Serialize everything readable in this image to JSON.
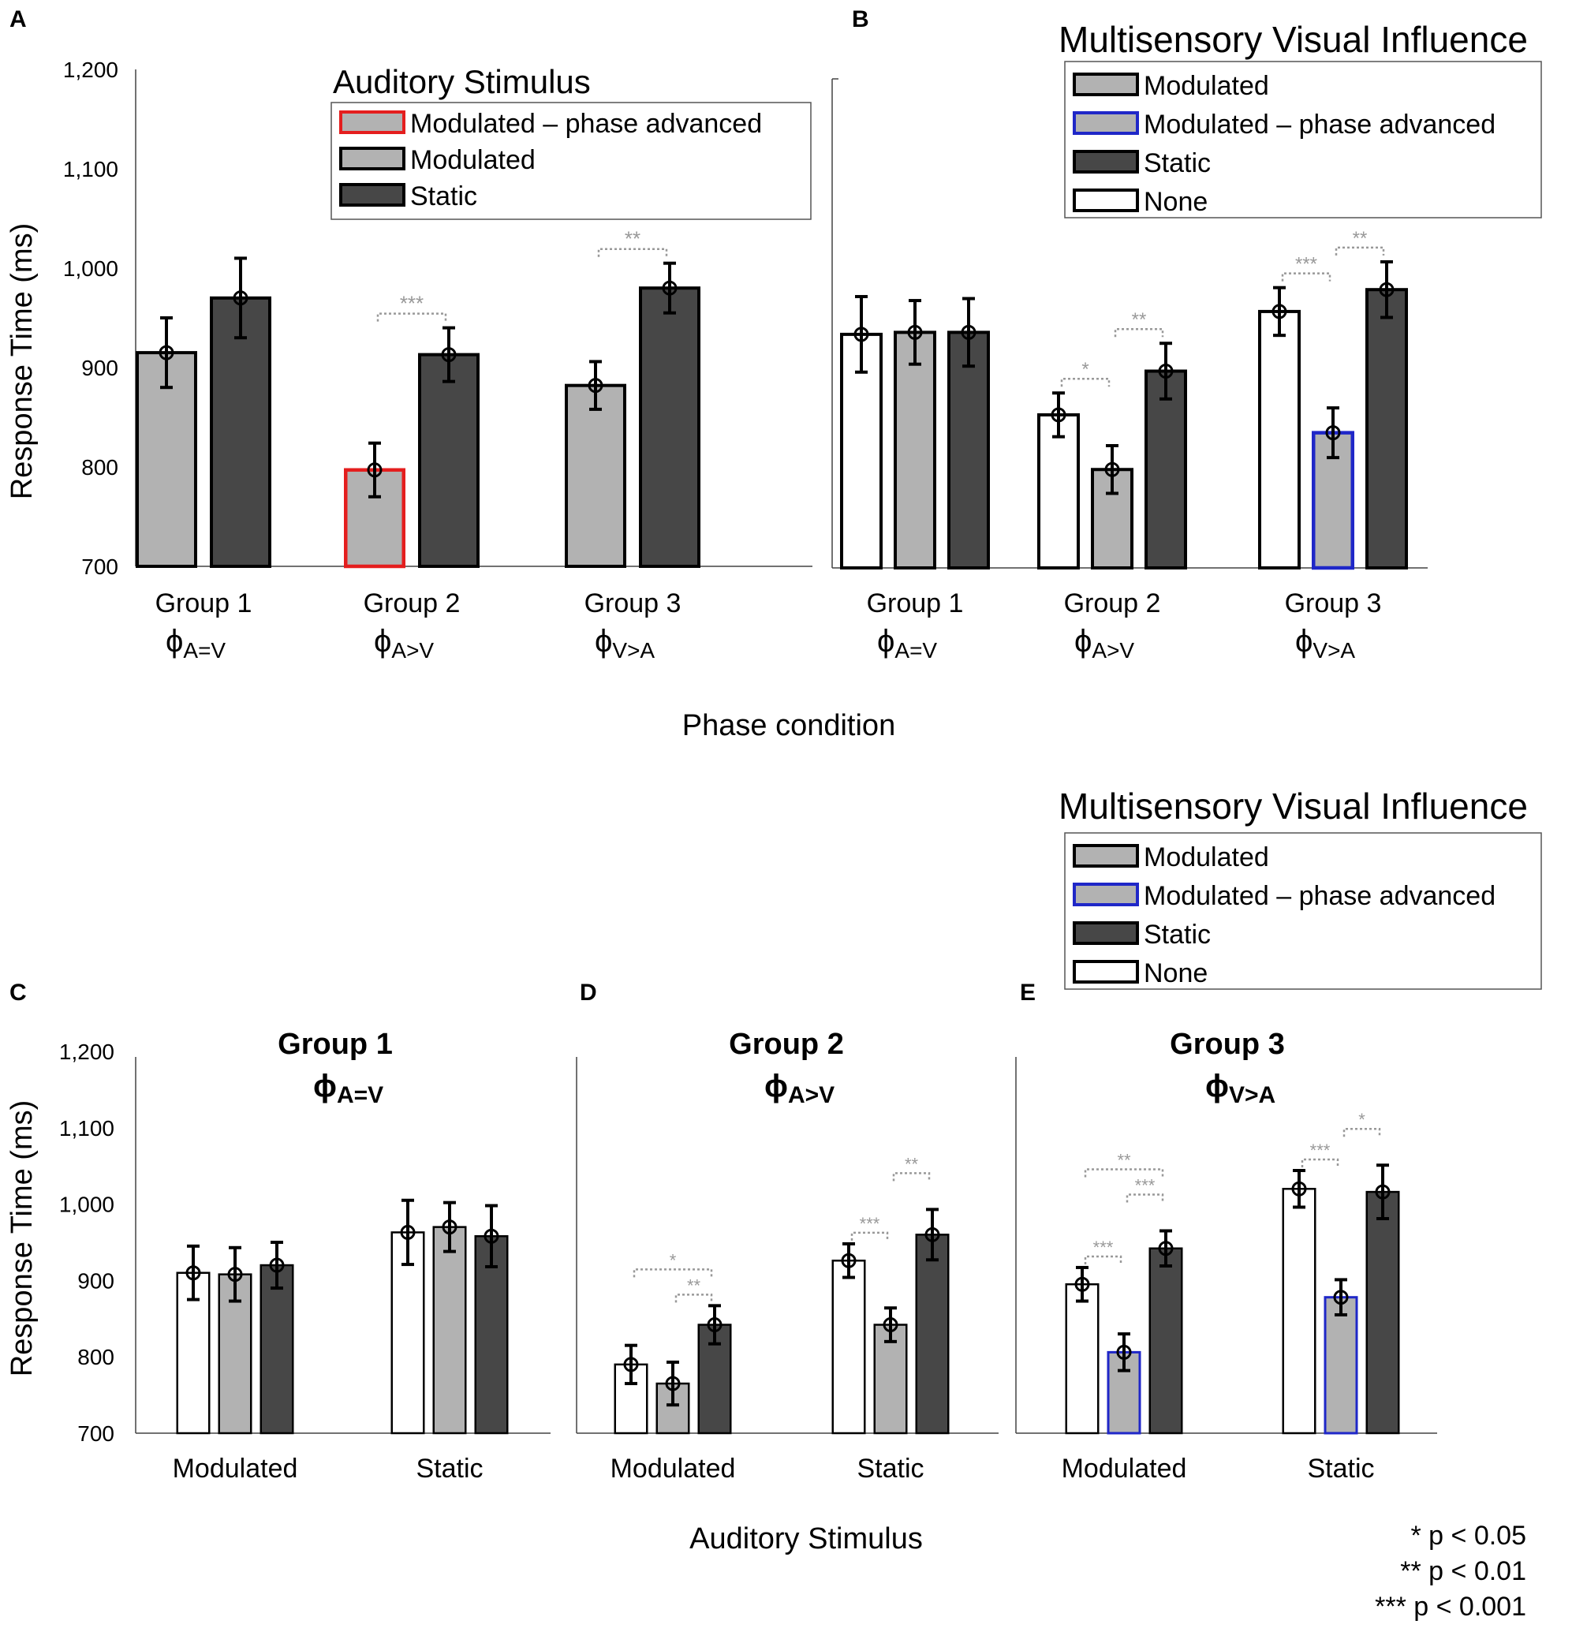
{
  "colors": {
    "light": "#b2b2b2",
    "dark": "#474747",
    "none": "#ffffff",
    "red": "#e41e1e",
    "blue": "#1f27c8",
    "sig": "#999999",
    "axis": "#000000"
  },
  "legends": {
    "auditory": {
      "title": "Auditory Stimulus",
      "items": [
        {
          "label": "Modulated – phase advanced",
          "fill": "light",
          "edge": "red"
        },
        {
          "label": "Modulated",
          "fill": "light",
          "edge": "black"
        },
        {
          "label": "Static",
          "fill": "dark",
          "edge": "black"
        }
      ]
    },
    "visual": {
      "title": "Multisensory Visual Influence",
      "items": [
        {
          "label": "Modulated",
          "fill": "light",
          "edge": "black"
        },
        {
          "label": "Modulated – phase advanced",
          "fill": "light",
          "edge": "blue"
        },
        {
          "label": "Static",
          "fill": "dark",
          "edge": "black"
        },
        {
          "label": "None",
          "fill": "none",
          "edge": "black"
        }
      ]
    }
  },
  "pvalues": [
    "* p < 0.05",
    "** p < 0.01",
    "*** p < 0.001"
  ],
  "chart_data": [
    {
      "panel": "A",
      "type": "bar",
      "ylabel": "Response Time (ms)",
      "ylim": [
        700,
        1200
      ],
      "yticks": [
        "700",
        "800",
        "900",
        "1,000",
        "1,100",
        "1,200"
      ],
      "xlabel": "Phase condition",
      "groups": [
        {
          "name": "Group 1",
          "phase": "A=V",
          "bars": [
            {
              "value": 915,
              "err": 35,
              "fill": "light",
              "edge": "black"
            },
            {
              "value": 970,
              "err": 40,
              "fill": "dark",
              "edge": "black"
            }
          ]
        },
        {
          "name": "Group 2",
          "phase": "A>V",
          "bars": [
            {
              "value": 797,
              "err": 27,
              "fill": "light",
              "edge": "red"
            },
            {
              "value": 913,
              "err": 27,
              "fill": "dark",
              "edge": "black"
            }
          ]
        },
        {
          "name": "Group 3",
          "phase": "V>A",
          "bars": [
            {
              "value": 882,
              "err": 24,
              "fill": "light",
              "edge": "black"
            },
            {
              "value": 980,
              "err": 25,
              "fill": "dark",
              "edge": "black"
            }
          ]
        }
      ],
      "sig": [
        {
          "group": 1,
          "from": 0,
          "to": 1,
          "label": "***"
        },
        {
          "group": 2,
          "from": 0,
          "to": 1,
          "label": "**"
        }
      ]
    },
    {
      "panel": "B",
      "type": "bar",
      "ylim": [
        700,
        1200
      ],
      "xlabel": "Phase condition",
      "groups": [
        {
          "name": "Group 1",
          "phase": "A=V",
          "bars": [
            {
              "value": 935,
              "err": 38,
              "fill": "none",
              "edge": "black"
            },
            {
              "value": 937,
              "err": 32,
              "fill": "light",
              "edge": "black"
            },
            {
              "value": 937,
              "err": 34,
              "fill": "dark",
              "edge": "black"
            }
          ]
        },
        {
          "name": "Group 2",
          "phase": "A>V",
          "bars": [
            {
              "value": 854,
              "err": 22,
              "fill": "none",
              "edge": "black"
            },
            {
              "value": 799,
              "err": 24,
              "fill": "light",
              "edge": "black"
            },
            {
              "value": 898,
              "err": 28,
              "fill": "dark",
              "edge": "black"
            }
          ]
        },
        {
          "name": "Group 3",
          "phase": "V>A",
          "bars": [
            {
              "value": 958,
              "err": 24,
              "fill": "none",
              "edge": "black"
            },
            {
              "value": 836,
              "err": 25,
              "fill": "light",
              "edge": "blue"
            },
            {
              "value": 980,
              "err": 28,
              "fill": "dark",
              "edge": "black"
            }
          ]
        }
      ],
      "sig": [
        {
          "group": 1,
          "from": 0,
          "to": 1,
          "label": "*"
        },
        {
          "group": 1,
          "from": 1,
          "to": 2,
          "label": "**"
        },
        {
          "group": 2,
          "from": 0,
          "to": 1,
          "label": "***"
        },
        {
          "group": 2,
          "from": 1,
          "to": 2,
          "label": "**"
        }
      ]
    },
    {
      "panel": "C",
      "type": "bar",
      "title": "Group 1",
      "phase": "A=V",
      "ylabel": "Response Time (ms)",
      "ylim": [
        700,
        1200
      ],
      "yticks": [
        "700",
        "800",
        "900",
        "1,000",
        "1,100",
        "1,200"
      ],
      "groups": [
        {
          "name": "Modulated",
          "bars": [
            {
              "value": 910,
              "err": 35,
              "fill": "none",
              "edge": "black"
            },
            {
              "value": 908,
              "err": 35,
              "fill": "light",
              "edge": "black"
            },
            {
              "value": 920,
              "err": 30,
              "fill": "dark",
              "edge": "black"
            }
          ]
        },
        {
          "name": "Static",
          "bars": [
            {
              "value": 963,
              "err": 42,
              "fill": "none",
              "edge": "black"
            },
            {
              "value": 970,
              "err": 32,
              "fill": "light",
              "edge": "black"
            },
            {
              "value": 958,
              "err": 40,
              "fill": "dark",
              "edge": "black"
            }
          ]
        }
      ],
      "sig": []
    },
    {
      "panel": "D",
      "type": "bar",
      "title": "Group 2",
      "phase": "A>V",
      "xlabel": "Auditory Stimulus",
      "ylim": [
        700,
        1200
      ],
      "groups": [
        {
          "name": "Modulated",
          "bars": [
            {
              "value": 790,
              "err": 25,
              "fill": "none",
              "edge": "black"
            },
            {
              "value": 765,
              "err": 28,
              "fill": "light",
              "edge": "black"
            },
            {
              "value": 842,
              "err": 25,
              "fill": "dark",
              "edge": "black"
            }
          ]
        },
        {
          "name": "Static",
          "bars": [
            {
              "value": 926,
              "err": 22,
              "fill": "none",
              "edge": "black"
            },
            {
              "value": 842,
              "err": 22,
              "fill": "light",
              "edge": "black"
            },
            {
              "value": 960,
              "err": 33,
              "fill": "dark",
              "edge": "black"
            }
          ]
        }
      ],
      "sig": [
        {
          "group": 0,
          "from": 1,
          "to": 2,
          "label": "**",
          "level": 0
        },
        {
          "group": 0,
          "from": 0,
          "to": 2,
          "label": "*",
          "level": 1
        },
        {
          "group": 1,
          "from": 0,
          "to": 1,
          "label": "***",
          "level": 0
        },
        {
          "group": 1,
          "from": 1,
          "to": 2,
          "label": "**",
          "level": 1
        }
      ]
    },
    {
      "panel": "E",
      "type": "bar",
      "title": "Group 3",
      "phase": "V>A",
      "ylim": [
        700,
        1200
      ],
      "groups": [
        {
          "name": "Modulated",
          "bars": [
            {
              "value": 895,
              "err": 22,
              "fill": "none",
              "edge": "black"
            },
            {
              "value": 806,
              "err": 24,
              "fill": "light",
              "edge": "blue"
            },
            {
              "value": 942,
              "err": 23,
              "fill": "dark",
              "edge": "black"
            }
          ]
        },
        {
          "name": "Static",
          "bars": [
            {
              "value": 1020,
              "err": 24,
              "fill": "none",
              "edge": "black"
            },
            {
              "value": 878,
              "err": 23,
              "fill": "light",
              "edge": "blue"
            },
            {
              "value": 1016,
              "err": 35,
              "fill": "dark",
              "edge": "black"
            }
          ]
        }
      ],
      "sig": [
        {
          "group": 0,
          "from": 0,
          "to": 1,
          "label": "***",
          "level": 0
        },
        {
          "group": 0,
          "from": 1,
          "to": 2,
          "label": "***",
          "level": 1
        },
        {
          "group": 0,
          "from": 0,
          "to": 2,
          "label": "**",
          "level": 2
        },
        {
          "group": 1,
          "from": 0,
          "to": 1,
          "label": "***",
          "level": 0
        },
        {
          "group": 1,
          "from": 1,
          "to": 2,
          "label": "*",
          "level": 1
        }
      ]
    }
  ]
}
